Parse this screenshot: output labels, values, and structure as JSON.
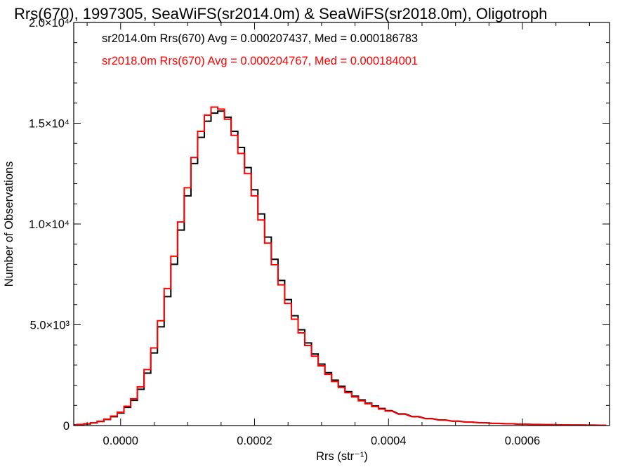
{
  "chart_data": {
    "type": "line",
    "title": "Rrs(670), 1997305, SeaWiFS(sr2014.0m) & SeaWiFS(sr2018.0m), Oligotroph",
    "xlabel": "Rrs (str⁻¹)",
    "ylabel": "Number of Observations",
    "xlim": [
      -7e-05,
      0.00073
    ],
    "ylim": [
      0,
      20000
    ],
    "x_ticks": [
      {
        "value": 0.0,
        "label": "0.0000"
      },
      {
        "value": 0.0002,
        "label": "0.0002"
      },
      {
        "value": 0.0004,
        "label": "0.0004"
      },
      {
        "value": 0.0006,
        "label": "0.0006"
      }
    ],
    "y_ticks": [
      {
        "value": 0,
        "label": "0"
      },
      {
        "value": 5000,
        "label": "5.0×10³"
      },
      {
        "value": 10000,
        "label": "1.0×10⁴"
      },
      {
        "value": 15000,
        "label": "1.5×10⁴"
      },
      {
        "value": 20000,
        "label": "2.0×10⁴"
      }
    ],
    "grid": false,
    "legend_position": "top-left",
    "series": [
      {
        "name": "sr2014.0m",
        "label": "sr2014.0m Rrs(670) Avg = 0.000207437, Med = 0.000186783",
        "color": "#000000",
        "x": [
          -7e-05,
          -6e-05,
          -5e-05,
          -4e-05,
          -3e-05,
          -2e-05,
          -1e-05,
          0.0,
          1e-05,
          2e-05,
          3e-05,
          4e-05,
          5e-05,
          6e-05,
          7e-05,
          8e-05,
          9e-05,
          0.0001,
          0.00011,
          0.00012,
          0.00013,
          0.00014,
          0.00015,
          0.00016,
          0.00017,
          0.00018,
          0.00019,
          0.0002,
          0.00021,
          0.00022,
          0.00023,
          0.00024,
          0.00025,
          0.00026,
          0.00027,
          0.00028,
          0.00029,
          0.0003,
          0.00031,
          0.00032,
          0.00033,
          0.00034,
          0.00035,
          0.00036,
          0.00037,
          0.00038,
          0.00039,
          0.0004,
          0.00042,
          0.00044,
          0.00046,
          0.00048,
          0.0005,
          0.00052,
          0.00054,
          0.00056,
          0.00058,
          0.0006,
          0.00062,
          0.00064,
          0.00066,
          0.00068,
          0.0007,
          0.00072
        ],
        "y": [
          30,
          50,
          80,
          130,
          200,
          300,
          440,
          620,
          900,
          1250,
          1800,
          2600,
          3600,
          4900,
          6400,
          8000,
          9700,
          11400,
          13000,
          14300,
          15100,
          15500,
          15600,
          15300,
          14600,
          13800,
          12800,
          11700,
          10500,
          9350,
          8250,
          7200,
          6250,
          5450,
          4750,
          4100,
          3550,
          3050,
          2620,
          2250,
          1950,
          1680,
          1460,
          1270,
          1110,
          970,
          850,
          740,
          580,
          450,
          350,
          280,
          220,
          175,
          140,
          110,
          90,
          70,
          55,
          45,
          35,
          28,
          22,
          17
        ]
      },
      {
        "name": "sr2018.0m",
        "label": "sr2018.0m Rrs(670) Avg = 0.000204767, Med = 0.000184001",
        "color": "#ff0000",
        "x": [
          -7e-05,
          -6e-05,
          -5e-05,
          -4e-05,
          -3e-05,
          -2e-05,
          -1e-05,
          0.0,
          1e-05,
          2e-05,
          3e-05,
          4e-05,
          5e-05,
          6e-05,
          7e-05,
          8e-05,
          9e-05,
          0.0001,
          0.00011,
          0.00012,
          0.00013,
          0.00014,
          0.00015,
          0.00016,
          0.00017,
          0.00018,
          0.00019,
          0.0002,
          0.00021,
          0.00022,
          0.00023,
          0.00024,
          0.00025,
          0.00026,
          0.00027,
          0.00028,
          0.00029,
          0.0003,
          0.00031,
          0.00032,
          0.00033,
          0.00034,
          0.00035,
          0.00036,
          0.00037,
          0.00038,
          0.00039,
          0.0004,
          0.00042,
          0.00044,
          0.00046,
          0.00048,
          0.0005,
          0.00052,
          0.00054,
          0.00056,
          0.00058,
          0.0006,
          0.00062,
          0.00064,
          0.00066,
          0.00068,
          0.0007,
          0.00072
        ],
        "y": [
          35,
          55,
          90,
          140,
          215,
          320,
          470,
          660,
          960,
          1330,
          1920,
          2780,
          3850,
          5200,
          6800,
          8400,
          10100,
          11800,
          13300,
          14600,
          15400,
          15800,
          15700,
          15200,
          14400,
          13500,
          12500,
          11400,
          10200,
          9050,
          7980,
          6980,
          6060,
          5280,
          4600,
          3970,
          3440,
          2960,
          2540,
          2180,
          1890,
          1630,
          1420,
          1230,
          1080,
          940,
          820,
          720,
          560,
          435,
          340,
          270,
          212,
          168,
          134,
          106,
          86,
          67,
          53,
          43,
          34,
          27,
          21,
          16
        ]
      }
    ]
  }
}
